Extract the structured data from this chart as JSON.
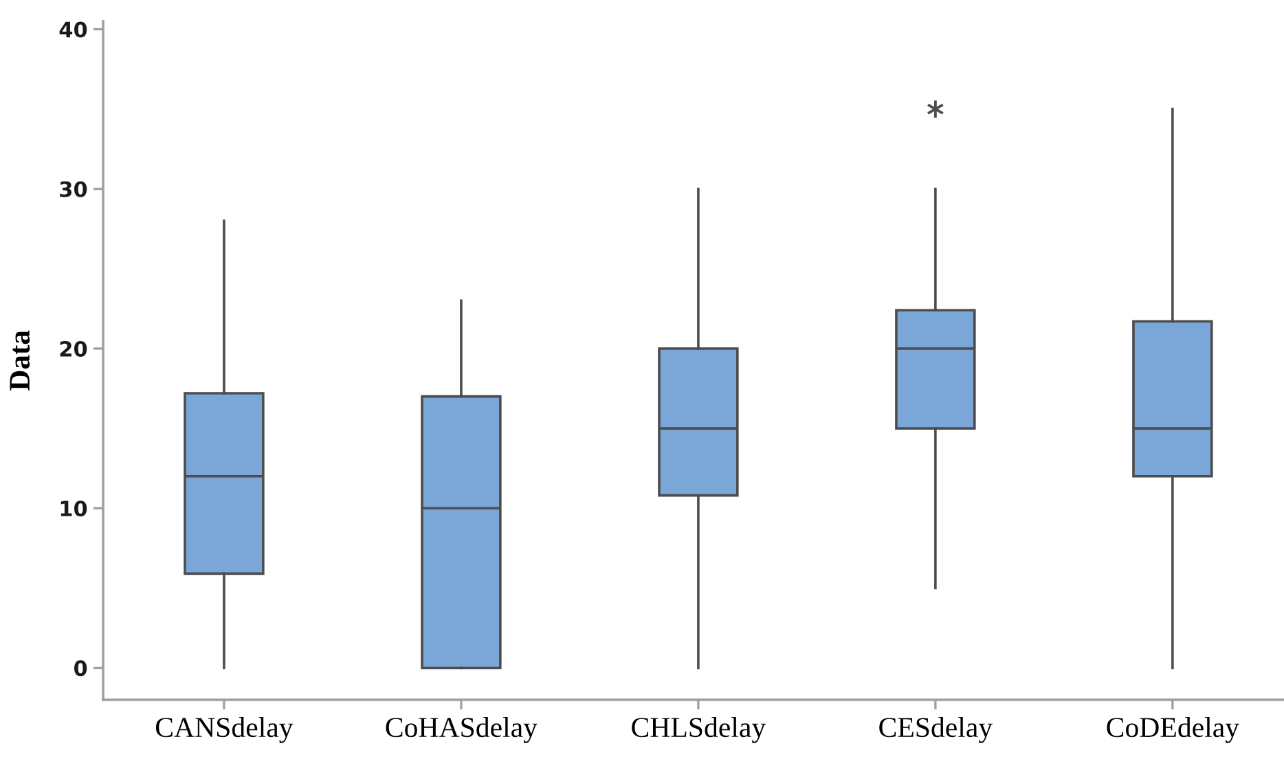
{
  "chart_data": {
    "type": "box",
    "ylabel": "Data",
    "categories": [
      "CANSdelay",
      "CoHASdelay",
      "CHLSdelay",
      "CESdelay",
      "CoDEdelay"
    ],
    "series": [
      {
        "color": "#7ba7d8",
        "boxes": [
          {
            "low": 0,
            "q1": 5.9,
            "median": 12,
            "q3": 17.2,
            "high": 28
          },
          {
            "low": 0,
            "q1": 0,
            "median": 10,
            "q3": 17,
            "high": 23
          },
          {
            "low": 0,
            "q1": 10.8,
            "median": 15,
            "q3": 20,
            "high": 30
          },
          {
            "low": 5,
            "q1": 15,
            "median": 20,
            "q3": 22.4,
            "high": 30,
            "outliers": [
              35
            ]
          },
          {
            "low": 0,
            "q1": 12,
            "median": 15,
            "q3": 21.7,
            "high": 35
          }
        ]
      }
    ],
    "ylim": [
      -2,
      40.5
    ],
    "yticks": [
      0,
      10,
      20,
      30,
      40
    ],
    "grid": false
  }
}
